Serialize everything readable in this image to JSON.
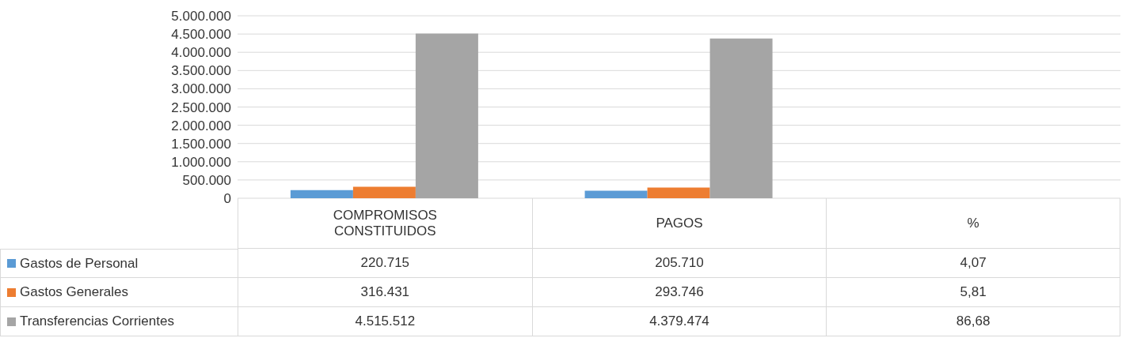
{
  "chart_data": {
    "type": "bar",
    "categories": [
      "COMPROMISOS CONSTITUIDOS",
      "PAGOS",
      "%"
    ],
    "series": [
      {
        "name": "Gastos de Personal",
        "color": "#5b9bd5",
        "values": [
          220715,
          205710,
          4.07
        ],
        "value_labels": [
          "220.715",
          "205.710",
          "4,07"
        ]
      },
      {
        "name": "Gastos Generales",
        "color": "#ed7d31",
        "values": [
          316431,
          293746,
          5.81
        ],
        "value_labels": [
          "316.431",
          "293.746",
          "5,81"
        ]
      },
      {
        "name": "Transferencias Corrientes",
        "color": "#a5a5a5",
        "values": [
          4515512,
          4379474,
          86.68
        ],
        "value_labels": [
          "4.515.512",
          "4.379.474",
          "86,68"
        ]
      }
    ],
    "ylim": [
      0,
      5000000
    ],
    "yticks": [
      0,
      {
        "value": 500000,
        "label": "500.000"
      },
      {
        "value": 1000000,
        "label": "1.000.000"
      },
      {
        "value": 1500000,
        "label": "1.500.000"
      },
      {
        "value": 2000000,
        "label": "2.000.000"
      },
      {
        "value": 2500000,
        "label": "2.500.000"
      },
      {
        "value": 3000000,
        "label": "3.000.000"
      },
      {
        "value": 3500000,
        "label": "3.500.000"
      },
      {
        "value": 4000000,
        "label": "4.000.000"
      },
      {
        "value": 4500000,
        "label": "4.500.000"
      },
      {
        "value": 5000000,
        "label": "5.000.000"
      }
    ],
    "grid": "y",
    "legend": "bottom"
  }
}
